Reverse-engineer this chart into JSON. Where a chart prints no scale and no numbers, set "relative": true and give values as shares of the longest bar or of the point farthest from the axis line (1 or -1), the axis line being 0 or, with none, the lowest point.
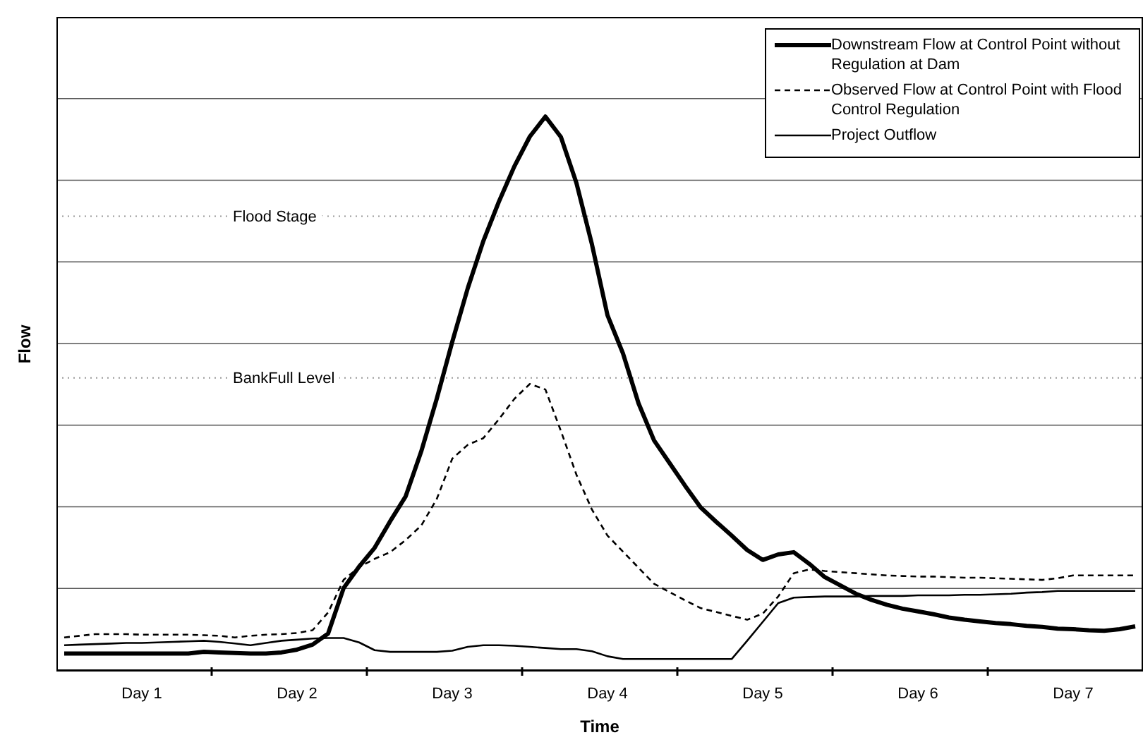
{
  "chart_data": {
    "type": "line",
    "xlabel": "Time",
    "ylabel": "Flow",
    "relative": true,
    "grid": "y",
    "legend": "top right",
    "categories": [
      null,
      null,
      null,
      null,
      null,
      "Day 1",
      null,
      null,
      null,
      null,
      null,
      null,
      null,
      null,
      null,
      "Day 2",
      null,
      null,
      null,
      null,
      null,
      null,
      null,
      null,
      null,
      "Day 3",
      null,
      null,
      null,
      null,
      null,
      null,
      null,
      null,
      null,
      "Day 4",
      null,
      null,
      null,
      null,
      null,
      null,
      null,
      null,
      null,
      "Day 5",
      null,
      null,
      null,
      null,
      null,
      null,
      null,
      null,
      null,
      "Day 6",
      null,
      null,
      null,
      null,
      null,
      null,
      null,
      null,
      null,
      "Day 7",
      null,
      null,
      null,
      null
    ],
    "series": [
      {
        "name": "Downstream Flow at Control Point without Regulation at Dam",
        "color": "#000000",
        "line_style": "solid",
        "values": [
          0.03,
          0.03,
          0.03,
          0.03,
          0.03,
          0.03,
          0.03,
          0.03,
          0.03,
          0.033,
          0.032,
          0.031,
          0.03,
          0.03,
          0.032,
          0.037,
          0.046,
          0.066,
          0.148,
          0.187,
          0.221,
          0.269,
          0.314,
          0.395,
          0.49,
          0.593,
          0.69,
          0.775,
          0.846,
          0.91,
          0.964,
          1,
          0.963,
          0.88,
          0.769,
          0.641,
          0.572,
          0.482,
          0.415,
          0.374,
          0.333,
          0.294,
          0.268,
          0.243,
          0.217,
          0.199,
          0.209,
          0.213,
          0.192,
          0.168,
          0.153,
          0.138,
          0.127,
          0.118,
          0.111,
          0.106,
          0.101,
          0.095,
          0.091,
          0.088,
          0.085,
          0.083,
          0.08,
          0.078,
          0.075,
          0.074,
          0.072,
          0.071,
          0.074,
          0.079
        ]
      },
      {
        "name": "Observed Flow at Control Point with Flood Control Regulation",
        "color": "#000000",
        "line_style": "dashed",
        "values": [
          0.059,
          0.062,
          0.065,
          0.065,
          0.065,
          0.064,
          0.064,
          0.064,
          0.064,
          0.063,
          0.062,
          0.059,
          0.062,
          0.064,
          0.065,
          0.067,
          0.072,
          0.104,
          0.163,
          0.186,
          0.201,
          0.213,
          0.235,
          0.261,
          0.309,
          0.382,
          0.407,
          0.419,
          0.453,
          0.49,
          0.517,
          0.507,
          0.432,
          0.353,
          0.29,
          0.243,
          0.214,
          0.185,
          0.156,
          0.141,
          0.126,
          0.112,
          0.105,
          0.098,
          0.091,
          0.102,
          0.133,
          0.175,
          0.182,
          0.179,
          0.177,
          0.175,
          0.173,
          0.171,
          0.17,
          0.169,
          0.169,
          0.168,
          0.167,
          0.167,
          0.166,
          0.165,
          0.164,
          0.163,
          0.166,
          0.171,
          0.171,
          0.171,
          0.171,
          0.171
        ]
      },
      {
        "name": "Project Outflow",
        "color": "#000000",
        "line_style": "solid",
        "values": [
          0.045,
          0.046,
          0.047,
          0.048,
          0.049,
          0.049,
          0.05,
          0.051,
          0.052,
          0.053,
          0.051,
          0.048,
          0.045,
          0.049,
          0.053,
          0.055,
          0.057,
          0.058,
          0.058,
          0.05,
          0.036,
          0.033,
          0.033,
          0.033,
          0.033,
          0.035,
          0.042,
          0.045,
          0.045,
          0.044,
          0.042,
          0.04,
          0.038,
          0.038,
          0.034,
          0.025,
          0.02,
          0.02,
          0.02,
          0.02,
          0.02,
          0.02,
          0.02,
          0.02,
          0.053,
          0.087,
          0.121,
          0.131,
          0.132,
          0.133,
          0.133,
          0.133,
          0.134,
          0.134,
          0.134,
          0.135,
          0.135,
          0.135,
          0.136,
          0.136,
          0.137,
          0.138,
          0.14,
          0.141,
          0.143,
          0.143,
          0.143,
          0.143,
          0.143,
          0.143
        ]
      }
    ],
    "ref_lines": [
      {
        "axis": "y",
        "value": 0.82,
        "label": "Flood Stage",
        "color": "#999999",
        "line_style": "dotted"
      },
      {
        "axis": "y",
        "value": 0.528,
        "label": "BankFull Level",
        "color": "#999999",
        "line_style": "dotted"
      }
    ]
  }
}
